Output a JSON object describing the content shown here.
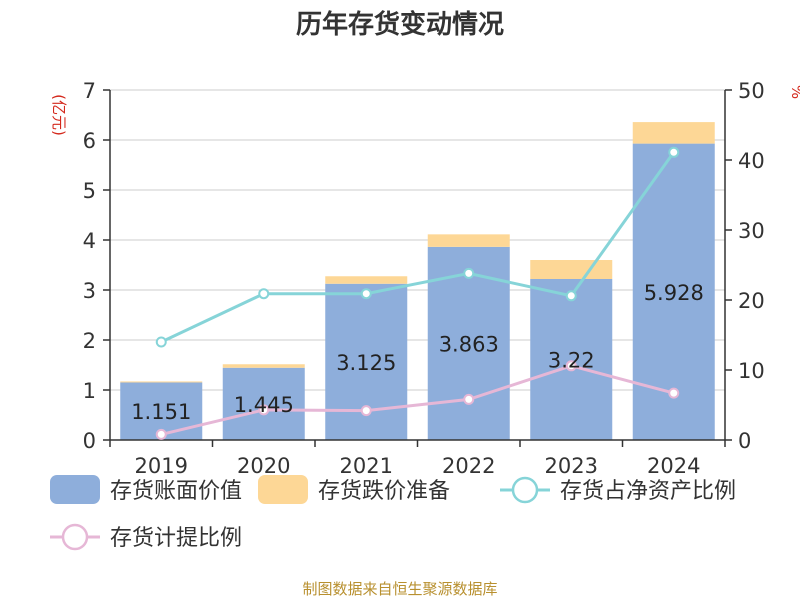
{
  "chart_data": {
    "type": "bar",
    "title": "历年存货变动情况",
    "categories": [
      "2019",
      "2020",
      "2021",
      "2022",
      "2023",
      "2024"
    ],
    "y_left": {
      "unit": "(亿元)",
      "range": [
        0,
        7
      ],
      "ticks": [
        "0",
        "1",
        "2",
        "3",
        "4",
        "5",
        "6",
        "7"
      ]
    },
    "y_right": {
      "unit": "%",
      "range": [
        0,
        50
      ],
      "ticks": [
        "0",
        "10",
        "20",
        "30",
        "40",
        "50"
      ]
    },
    "grid": true,
    "legend_position": "bottom",
    "stacked": true,
    "series": [
      {
        "name": "存货账面价值",
        "kind": "bar",
        "axis": "left",
        "color": "#8eaedb",
        "values": [
          1.151,
          1.445,
          3.125,
          3.863,
          3.22,
          5.928
        ],
        "labels": [
          "1.151",
          "1.445",
          "3.125",
          "3.863",
          "3.22",
          "5.928"
        ]
      },
      {
        "name": "存货跌价准备",
        "kind": "bar",
        "axis": "left",
        "color": "#fdd796",
        "values": [
          0.02,
          0.07,
          0.15,
          0.25,
          0.38,
          0.43
        ]
      },
      {
        "name": "存货占净资产比例",
        "kind": "line",
        "axis": "right",
        "color": "#86d4d8",
        "values": [
          14.0,
          20.9,
          20.9,
          23.8,
          20.6,
          41.1
        ]
      },
      {
        "name": "存货计提比例",
        "kind": "line",
        "axis": "right",
        "color": "#e6b7d6",
        "values": [
          0.8,
          4.3,
          4.2,
          5.8,
          10.6,
          6.7
        ]
      }
    ]
  },
  "footer": {
    "source": "制图数据来自恒生聚源数据库"
  }
}
